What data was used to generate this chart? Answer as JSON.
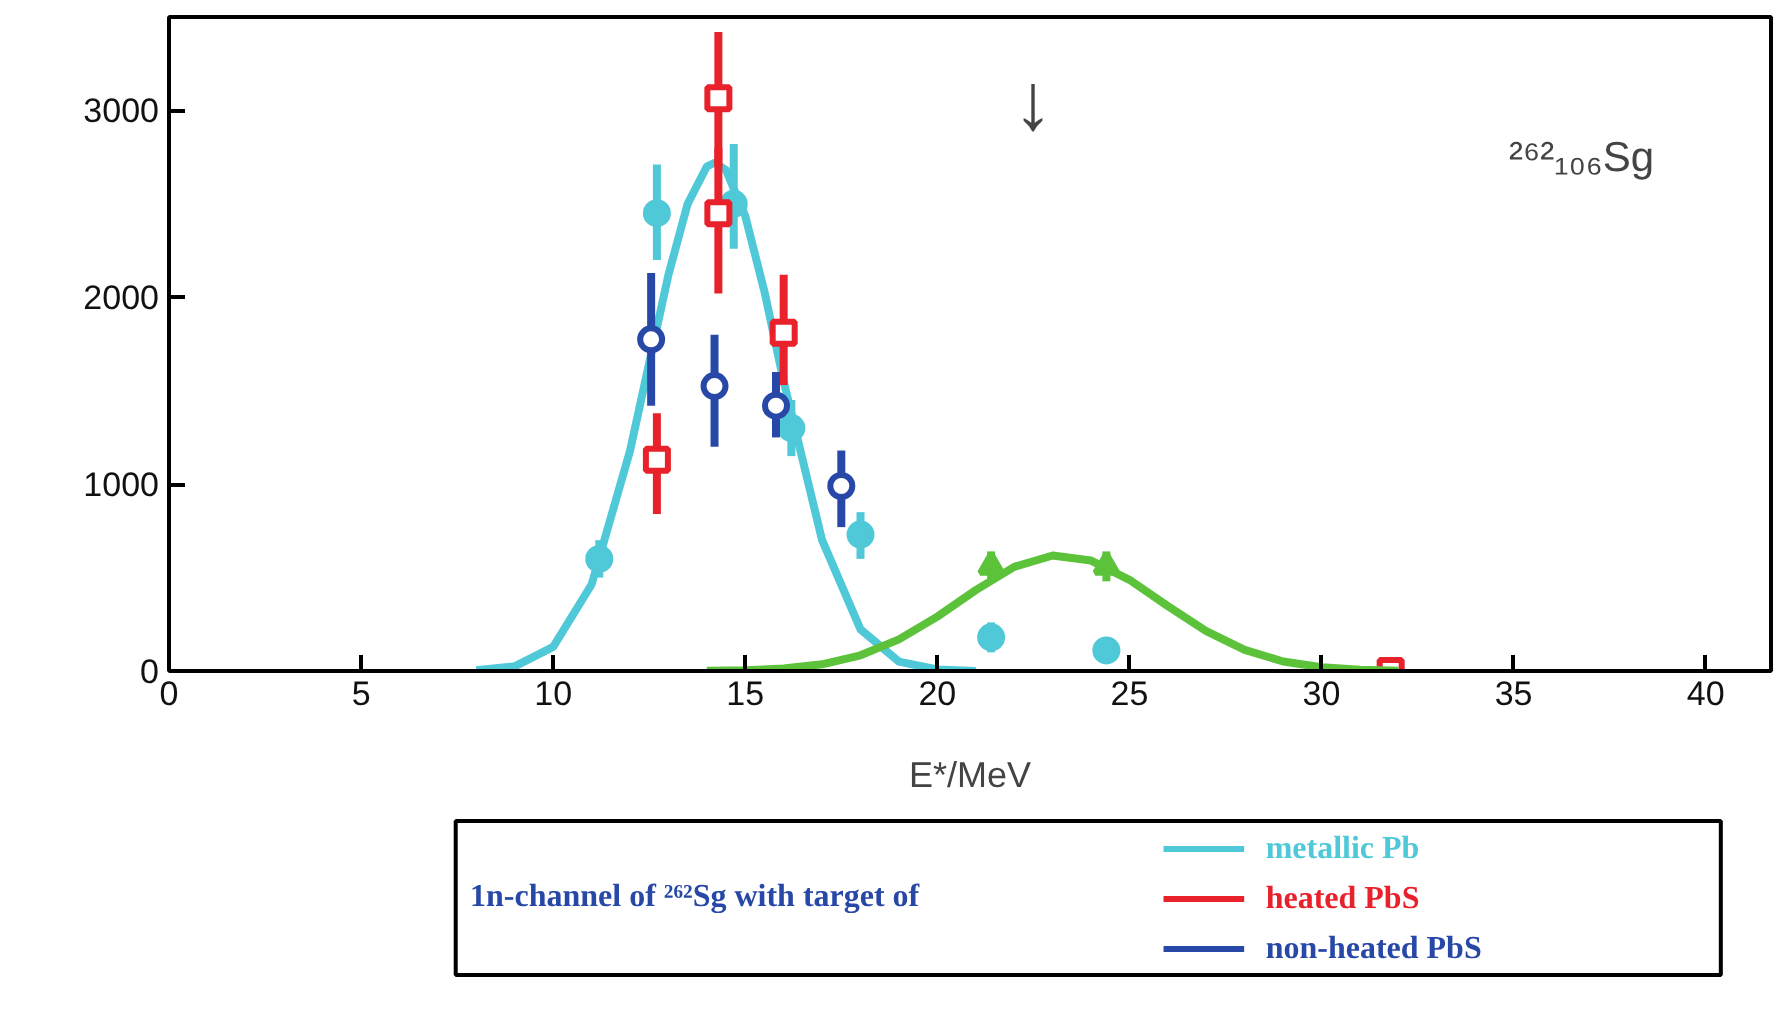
{
  "chart_data": {
    "type": "scatter",
    "xlabel": "E*/MeV",
    "legend_title": "1n-channel of ²⁶²Sg with target of",
    "legend": "bottom",
    "grid": false,
    "xlim": [
      0,
      41.7
    ],
    "ylim": [
      0,
      3500
    ],
    "xticks": [
      0,
      5,
      10,
      15,
      20,
      25,
      30,
      35,
      40
    ],
    "yticks": [
      0,
      1000,
      2000,
      3000
    ],
    "annotations": [
      "²⁶²₁₀₆Sg",
      "↓"
    ],
    "series": [
      {
        "type": "line",
        "name": "metallic Pb",
        "color": "#4fc8d8",
        "x": [
          8,
          9,
          10,
          11,
          12,
          13,
          13.5,
          14,
          14.2,
          14.5,
          15,
          15.5,
          16,
          17,
          18,
          19,
          20,
          21
        ],
        "values": [
          4,
          25,
          129,
          463,
          1178,
          2120,
          2500,
          2700,
          2720,
          2680,
          2435,
          2030,
          1550,
          700,
          223,
          50,
          8,
          0
        ]
      },
      {
        "color": "#4fc8d8",
        "marker": "circle",
        "x": [
          11.2,
          12.7,
          14.7,
          16.2,
          18.0,
          21.4,
          24.4
        ],
        "values": [
          600,
          2450,
          2500,
          1300,
          730,
          180,
          110
        ],
        "errors": [
          [
            500,
            700
          ],
          [
            2200,
            2710
          ],
          [
            2260,
            2820
          ],
          [
            1150,
            1450
          ],
          [
            600,
            850
          ],
          [
            100,
            260
          ],
          [
            40,
            180
          ]
        ]
      },
      {
        "name": "heated PbS",
        "color": "#e8212a",
        "marker": "square",
        "x": [
          12.7,
          14.3,
          14.3,
          16.0,
          31.8
        ],
        "values": [
          1130,
          3065,
          2450,
          1810,
          0
        ],
        "errors": [
          [
            840,
            1380
          ],
          [
            2700,
            3420
          ],
          [
            2020,
            2800
          ],
          [
            1530,
            2120
          ],
          null
        ]
      },
      {
        "name": "non-heated PbS",
        "color": "#2848a8",
        "marker": "circle",
        "x": [
          12.55,
          14.2,
          15.8,
          17.5
        ],
        "values": [
          1775,
          1525,
          1420,
          990
        ],
        "errors": [
          [
            1420,
            2130
          ],
          [
            1200,
            1800
          ],
          [
            1250,
            1600
          ],
          [
            770,
            1180
          ]
        ]
      },
      {
        "type": "line",
        "color": "#5cc23a",
        "x": [
          14,
          15,
          16,
          17,
          18,
          19,
          20,
          21,
          22,
          23,
          24,
          25,
          26,
          27,
          28,
          29,
          30,
          31,
          32
        ],
        "values": [
          1,
          4,
          13,
          36,
          84,
          169,
          291,
          433,
          557,
          618,
          591,
          488,
          347,
          213,
          113,
          51,
          20,
          7,
          2
        ]
      },
      {
        "color": "#5cc23a",
        "marker": "triangle",
        "x": [
          21.4,
          24.4
        ],
        "values": [
          560,
          560
        ],
        "errors": [
          [
            480,
            640
          ],
          [
            480,
            640
          ]
        ]
      }
    ]
  }
}
